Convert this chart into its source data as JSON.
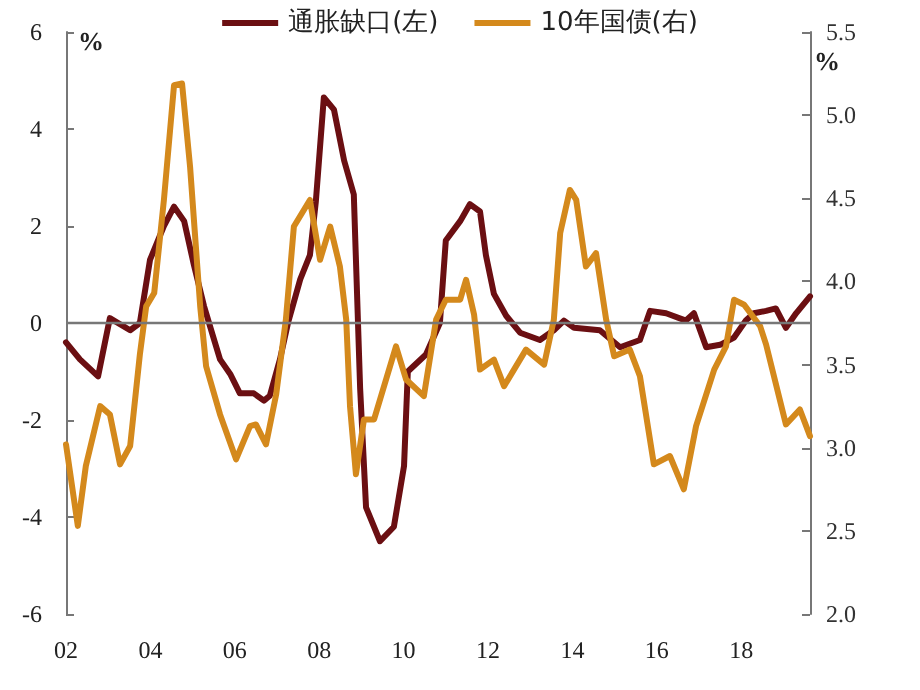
{
  "chart_data": {
    "type": "line",
    "ylabel": "%",
    "y2label": "%",
    "xlim": [
      2002,
      2019.63
    ],
    "xticks": [
      {
        "value": 2002,
        "label": "02"
      },
      {
        "value": 2004,
        "label": "04"
      },
      {
        "value": 2006,
        "label": "06"
      },
      {
        "value": 2008,
        "label": "08"
      },
      {
        "value": 2010,
        "label": "10"
      },
      {
        "value": 2012,
        "label": "12"
      },
      {
        "value": 2014,
        "label": "14"
      },
      {
        "value": 2016,
        "label": "16"
      },
      {
        "value": 2018,
        "label": "18"
      }
    ],
    "ylim": [
      -6,
      6
    ],
    "yticks": [
      -6,
      -4,
      -2,
      0,
      2,
      4,
      6
    ],
    "y2lim": [
      2.0,
      5.5
    ],
    "y2ticks": [
      {
        "value": 2,
        "label": "2.0"
      },
      {
        "value": 2.5,
        "label": "2.5"
      },
      {
        "value": 3,
        "label": "3.0"
      },
      {
        "value": 3.5,
        "label": "3.5"
      },
      {
        "value": 4,
        "label": "4.0"
      },
      {
        "value": 4.5,
        "label": "4.5"
      },
      {
        "value": 5,
        "label": "5.0"
      },
      {
        "value": 5.5,
        "label": "5.5"
      }
    ],
    "ref_lines": [
      {
        "axis": "y",
        "value": 0,
        "color": "#777777"
      }
    ],
    "grid": false,
    "legend": "top",
    "marker": "none",
    "line_style": "solid",
    "series": [
      {
        "name": "通胀缺口(左)",
        "color": "#6b0f12",
        "x": [
          2002.0,
          2002.33,
          2002.76,
          2003.04,
          2003.52,
          2003.75,
          2003.99,
          2004.32,
          2004.56,
          2004.8,
          2005.03,
          2005.27,
          2005.51,
          2005.65,
          2005.89,
          2006.12,
          2006.45,
          2006.69,
          2006.83,
          2007.07,
          2007.26,
          2007.55,
          2007.78,
          2007.92,
          2008.11,
          2008.35,
          2008.59,
          2008.82,
          2008.97,
          2009.11,
          2009.44,
          2009.77,
          2010.01,
          2010.1,
          2010.53,
          2010.86,
          2011.0,
          2011.34,
          2011.57,
          2011.81,
          2011.95,
          2012.14,
          2012.43,
          2012.76,
          2013.23,
          2013.56,
          2013.8,
          2014.04,
          2014.65,
          2015.13,
          2015.6,
          2015.84,
          2016.22,
          2016.69,
          2016.88,
          2017.17,
          2017.5,
          2017.83,
          2018.11,
          2018.3,
          2018.59,
          2018.82,
          2019.06,
          2019.3,
          2019.63
        ],
        "values": [
          -0.4,
          -0.75,
          -1.1,
          0.1,
          -0.15,
          0,
          1.3,
          2.0,
          2.4,
          2.1,
          1.2,
          0.35,
          -0.35,
          -0.75,
          -1.05,
          -1.45,
          -1.45,
          -1.6,
          -1.5,
          -0.75,
          0,
          0.9,
          1.4,
          2.5,
          4.65,
          4.4,
          3.35,
          2.65,
          -1.35,
          -3.8,
          -4.5,
          -4.2,
          -2.95,
          -1.0,
          -0.65,
          0,
          1.7,
          2.1,
          2.45,
          2.3,
          1.4,
          0.6,
          0.15,
          -0.2,
          -0.35,
          -0.15,
          0.05,
          -0.1,
          -0.15,
          -0.5,
          -0.35,
          0.25,
          0.2,
          0.05,
          0.2,
          -0.5,
          -0.45,
          -0.3,
          0.05,
          0.2,
          0.25,
          0.3,
          -0.1,
          0.2,
          0.55
        ]
      },
      {
        "name": "10年国债(右)",
        "color": "#d4891c",
        "axis": "y2",
        "x": [
          2002.0,
          2002.28,
          2002.47,
          2002.81,
          2003.04,
          2003.28,
          2003.52,
          2003.75,
          2003.9,
          2004.09,
          2004.32,
          2004.56,
          2004.75,
          2004.94,
          2005.18,
          2005.32,
          2005.65,
          2006.03,
          2006.36,
          2006.5,
          2006.74,
          2006.98,
          2007.21,
          2007.4,
          2007.78,
          2008.02,
          2008.26,
          2008.49,
          2008.64,
          2008.73,
          2008.87,
          2009.06,
          2009.3,
          2009.82,
          2010.06,
          2010.48,
          2010.77,
          2011.0,
          2011.34,
          2011.48,
          2011.67,
          2011.81,
          2012.14,
          2012.38,
          2012.9,
          2013.33,
          2013.56,
          2013.71,
          2013.94,
          2014.09,
          2014.32,
          2014.56,
          2014.8,
          2014.99,
          2015.36,
          2015.6,
          2015.93,
          2016.31,
          2016.64,
          2016.93,
          2017.36,
          2017.64,
          2017.83,
          2018.07,
          2018.45,
          2018.59,
          2019.06,
          2019.39,
          2019.63
        ],
        "values": [
          3.02,
          2.53,
          2.89,
          3.25,
          3.2,
          2.9,
          3.01,
          3.56,
          3.85,
          3.93,
          4.49,
          5.18,
          5.19,
          4.69,
          3.85,
          3.49,
          3.2,
          2.93,
          3.13,
          3.14,
          3.02,
          3.32,
          3.77,
          4.33,
          4.49,
          4.13,
          4.33,
          4.09,
          3.77,
          3.25,
          2.84,
          3.17,
          3.17,
          3.61,
          3.41,
          3.31,
          3.77,
          3.89,
          3.89,
          4.01,
          3.8,
          3.47,
          3.53,
          3.37,
          3.59,
          3.5,
          3.77,
          4.29,
          4.55,
          4.49,
          4.09,
          4.17,
          3.77,
          3.55,
          3.59,
          3.43,
          2.9,
          2.95,
          2.75,
          3.13,
          3.47,
          3.61,
          3.89,
          3.86,
          3.73,
          3.62,
          3.14,
          3.23,
          3.07
        ]
      }
    ]
  }
}
